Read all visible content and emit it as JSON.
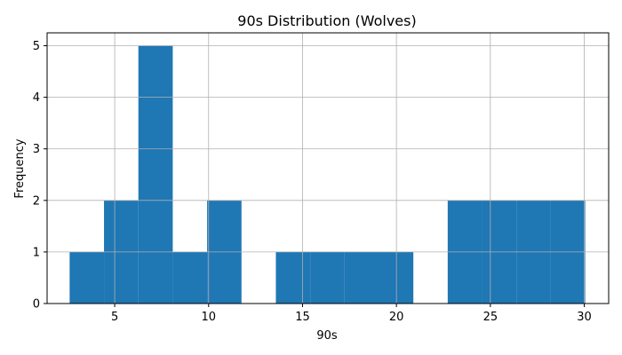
{
  "chart_data": {
    "type": "bar",
    "title": "90s Distribution (Wolves)",
    "xlabel": "90s",
    "ylabel": "Frequency",
    "xlim": [
      1.4,
      31.3
    ],
    "ylim": [
      0,
      5.25
    ],
    "xticks": [
      5,
      10,
      15,
      20,
      25,
      30
    ],
    "yticks": [
      0,
      1,
      2,
      3,
      4,
      5
    ],
    "grid": true,
    "bar_color": "#1f77b4",
    "bins": [
      {
        "x0": 2.6,
        "x1": 4.43,
        "count": 1
      },
      {
        "x0": 4.43,
        "x1": 6.26,
        "count": 2
      },
      {
        "x0": 6.26,
        "x1": 8.09,
        "count": 5
      },
      {
        "x0": 8.09,
        "x1": 9.92,
        "count": 1
      },
      {
        "x0": 9.92,
        "x1": 11.75,
        "count": 2
      },
      {
        "x0": 11.75,
        "x1": 13.58,
        "count": 0
      },
      {
        "x0": 13.58,
        "x1": 15.41,
        "count": 1
      },
      {
        "x0": 15.41,
        "x1": 17.24,
        "count": 1
      },
      {
        "x0": 17.24,
        "x1": 19.07,
        "count": 1
      },
      {
        "x0": 19.07,
        "x1": 20.9,
        "count": 1
      },
      {
        "x0": 20.9,
        "x1": 22.73,
        "count": 0
      },
      {
        "x0": 22.73,
        "x1": 24.56,
        "count": 2
      },
      {
        "x0": 24.56,
        "x1": 26.39,
        "count": 2
      },
      {
        "x0": 26.39,
        "x1": 28.22,
        "count": 2
      },
      {
        "x0": 28.22,
        "x1": 30.05,
        "count": 2
      }
    ]
  }
}
